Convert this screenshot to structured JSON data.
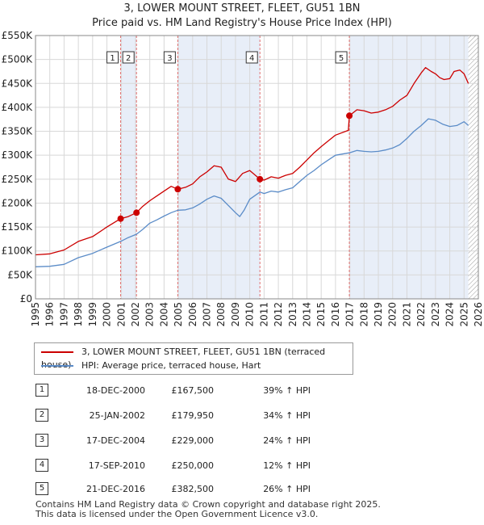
{
  "title_line1": "3, LOWER MOUNT STREET, FLEET, GU51 1BN",
  "title_line2": "Price paid vs. HM Land Registry's House Price Index (HPI)",
  "colors": {
    "price": "#cc0000",
    "hpi": "#5b8cc8",
    "shade": "#e8eef8",
    "vline": "#e07070"
  },
  "legend": {
    "price_label": "3, LOWER MOUNT STREET, FLEET, GU51 1BN (terraced house)",
    "hpi_label": "HPI: Average price, terraced house, Hart"
  },
  "transactions": [
    {
      "num": "1",
      "date": "18-DEC-2000",
      "price": "£167,500",
      "hpi": "39% ↑ HPI"
    },
    {
      "num": "2",
      "date": "25-JAN-2002",
      "price": "£179,950",
      "hpi": "34% ↑ HPI"
    },
    {
      "num": "3",
      "date": "17-DEC-2004",
      "price": "£229,000",
      "hpi": "24% ↑ HPI"
    },
    {
      "num": "4",
      "date": "17-SEP-2010",
      "price": "£250,000",
      "hpi": "12% ↑ HPI"
    },
    {
      "num": "5",
      "date": "21-DEC-2016",
      "price": "£382,500",
      "hpi": "26% ↑ HPI"
    }
  ],
  "footer_line1": "Contains HM Land Registry data © Crown copyright and database right 2025.",
  "footer_line2": "This data is licensed under the Open Government Licence v3.0.",
  "chart_data": {
    "type": "line",
    "xlabel": "",
    "ylabel": "",
    "xlim": [
      1995,
      2026
    ],
    "ylim": [
      0,
      550000
    ],
    "x_ticks": [
      1995,
      1996,
      1997,
      1998,
      1999,
      2000,
      2001,
      2002,
      2003,
      2004,
      2005,
      2006,
      2007,
      2008,
      2009,
      2010,
      2011,
      2012,
      2013,
      2014,
      2015,
      2016,
      2017,
      2018,
      2019,
      2020,
      2021,
      2022,
      2023,
      2024,
      2025,
      2026
    ],
    "y_ticks": [
      0,
      50000,
      100000,
      150000,
      200000,
      250000,
      300000,
      350000,
      400000,
      450000,
      500000,
      550000
    ],
    "y_tick_labels": [
      "£0",
      "£50K",
      "£100K",
      "£150K",
      "£200K",
      "£250K",
      "£300K",
      "£350K",
      "£400K",
      "£450K",
      "£500K",
      "£550K"
    ],
    "shaded_spans": [
      [
        2000.96,
        2002.07
      ],
      [
        2004.96,
        2010.71
      ],
      [
        2016.97,
        2025.3
      ]
    ],
    "hatched_span": [
      2025.3,
      2026
    ],
    "sales": [
      {
        "label": "1",
        "x": 2000.96,
        "y": 167500
      },
      {
        "label": "2",
        "x": 2002.07,
        "y": 179950
      },
      {
        "label": "3",
        "x": 2004.96,
        "y": 229000
      },
      {
        "label": "4",
        "x": 2010.71,
        "y": 250000
      },
      {
        "label": "5",
        "x": 2016.97,
        "y": 382500
      }
    ],
    "series": [
      {
        "name": "3, LOWER MOUNT STREET, FLEET, GU51 1BN (terraced house)",
        "x": [
          1995,
          1996,
          1997,
          1998,
          1999,
          2000,
          2000.96,
          2001.5,
          2002.07,
          2002.5,
          2003,
          2003.5,
          2004,
          2004.5,
          2004.96,
          2005.5,
          2006,
          2006.5,
          2007,
          2007.5,
          2008,
          2008.5,
          2009,
          2009.5,
          2010,
          2010.71,
          2011,
          2011.5,
          2012,
          2012.5,
          2013,
          2013.5,
          2014,
          2014.5,
          2015,
          2015.5,
          2016,
          2016.9,
          2016.97,
          2017.5,
          2018,
          2018.5,
          2019,
          2019.5,
          2020,
          2020.5,
          2021,
          2021.5,
          2022,
          2022.3,
          2022.7,
          2023,
          2023.3,
          2023.6,
          2024,
          2024.3,
          2024.7,
          2025,
          2025.3
        ],
        "values": [
          92000,
          94000,
          102000,
          120000,
          130000,
          150000,
          167500,
          172000,
          179950,
          193000,
          205000,
          215000,
          225000,
          235000,
          229000,
          233000,
          240000,
          255000,
          265000,
          278000,
          275000,
          250000,
          245000,
          262000,
          268000,
          250000,
          248000,
          255000,
          252000,
          258000,
          262000,
          275000,
          290000,
          305000,
          318000,
          330000,
          342000,
          352000,
          382500,
          395000,
          393000,
          388000,
          390000,
          395000,
          402000,
          415000,
          425000,
          450000,
          472000,
          483000,
          475000,
          470000,
          462000,
          458000,
          460000,
          475000,
          478000,
          470000,
          450000
        ]
      },
      {
        "name": "HPI: Average price, terraced house, Hart",
        "x": [
          1995,
          1996,
          1997,
          1998,
          1999,
          2000,
          2000.96,
          2001.5,
          2002.07,
          2002.5,
          2003,
          2003.5,
          2004,
          2004.5,
          2004.96,
          2005.5,
          2006,
          2006.5,
          2007,
          2007.5,
          2008,
          2008.5,
          2009,
          2009.3,
          2009.6,
          2010,
          2010.71,
          2011,
          2011.5,
          2012,
          2012.5,
          2013,
          2013.5,
          2014,
          2014.5,
          2015,
          2015.5,
          2016,
          2016.97,
          2017.5,
          2018,
          2018.5,
          2019,
          2019.5,
          2020,
          2020.5,
          2021,
          2021.5,
          2022,
          2022.5,
          2023,
          2023.5,
          2024,
          2024.5,
          2025,
          2025.3
        ],
        "values": [
          67000,
          68000,
          72000,
          86000,
          95000,
          108000,
          120000,
          128000,
          135000,
          145000,
          158000,
          165000,
          173000,
          180000,
          185000,
          186000,
          190000,
          198000,
          208000,
          215000,
          210000,
          195000,
          180000,
          172000,
          185000,
          208000,
          223000,
          220000,
          225000,
          223000,
          228000,
          232000,
          245000,
          258000,
          268000,
          280000,
          290000,
          300000,
          305000,
          310000,
          308000,
          307000,
          308000,
          311000,
          315000,
          322000,
          335000,
          350000,
          362000,
          376000,
          373000,
          365000,
          360000,
          362000,
          370000,
          362000
        ]
      }
    ]
  }
}
